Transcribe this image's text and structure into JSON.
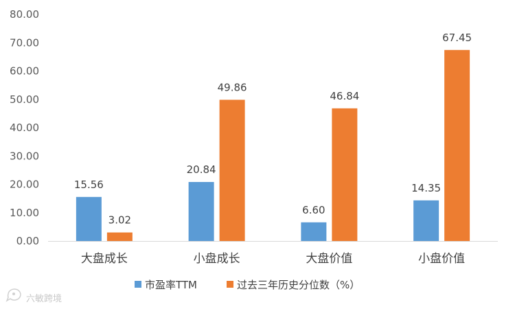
{
  "chart_data": {
    "type": "bar",
    "categories": [
      "大盘成长",
      "小盘成长",
      "大盘价值",
      "小盘价值"
    ],
    "series": [
      {
        "name": "市盈率TTM",
        "values": [
          15.56,
          20.84,
          6.6,
          14.35
        ],
        "labels": [
          "15.56",
          "20.84",
          "6.60",
          "14.35"
        ],
        "color": "#5B9BD5"
      },
      {
        "name": "过去三年历史分位数（%）",
        "values": [
          3.02,
          49.86,
          46.84,
          67.45
        ],
        "labels": [
          "3.02",
          "49.86",
          "46.84",
          "67.45"
        ],
        "color": "#ED7D31"
      }
    ],
    "ylim": [
      0,
      80
    ],
    "yticks": [
      "0.00",
      "10.00",
      "20.00",
      "30.00",
      "40.00",
      "50.00",
      "60.00",
      "70.00",
      "80.00"
    ],
    "grid": false,
    "legend_position": "bottom",
    "title": "",
    "xlabel": "",
    "ylabel": ""
  },
  "watermark": {
    "text": "六敏跨境",
    "icon": "chat-bubble-logo-icon"
  },
  "colors": {
    "axis": "#D9D9D9"
  }
}
